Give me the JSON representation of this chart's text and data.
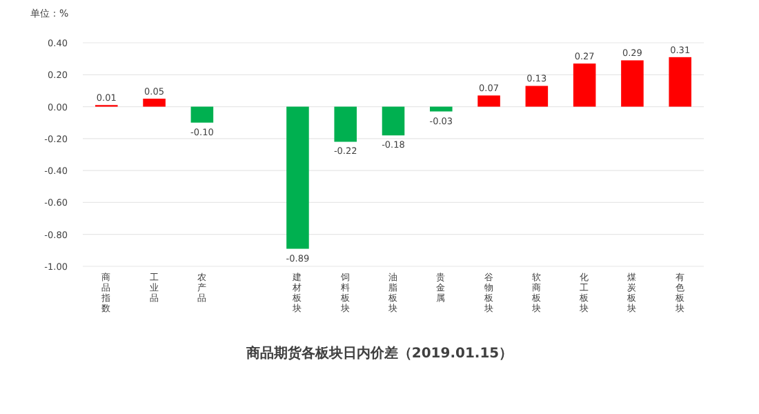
{
  "chart_data": {
    "type": "bar",
    "title": "商品期货各板块日内价差（2019.01.15）",
    "ylabel": "单位：%",
    "categories": [
      "商品指数",
      "工业品",
      "农产品",
      null,
      "建材板块",
      "饲料板块",
      "油脂板块",
      "贵金属",
      "谷物板块",
      "软商板块",
      "化工板块",
      "煤炭板块",
      "有色板块"
    ],
    "values": [
      0.01,
      0.05,
      -0.1,
      null,
      -0.89,
      -0.22,
      -0.18,
      -0.03,
      0.07,
      0.13,
      0.27,
      0.29,
      0.31
    ],
    "colors": [
      "#ff0000",
      "#ff0000",
      "#00b050",
      null,
      "#00b050",
      "#00b050",
      "#00b050",
      "#00b050",
      "#ff0000",
      "#ff0000",
      "#ff0000",
      "#ff0000",
      "#ff0000"
    ],
    "ylim": [
      -1.0,
      0.4
    ],
    "yticks": [
      {
        "value": -1,
        "label": "-1.00"
      },
      {
        "value": -0.8,
        "label": "-0.80"
      },
      {
        "value": -0.6,
        "label": "-0.60"
      },
      {
        "value": -0.4,
        "label": "-0.40"
      },
      {
        "value": -0.2,
        "label": "-0.20"
      },
      {
        "value": 0,
        "label": "0.00"
      },
      {
        "value": 0.2,
        "label": "0.20"
      },
      {
        "value": 0.4,
        "label": "0.40"
      }
    ],
    "value_labels": [
      "0.01",
      "0.05",
      "-0.10",
      null,
      "-0.89",
      "-0.22",
      "-0.18",
      "-0.03",
      "0.07",
      "0.13",
      "0.27",
      "0.29",
      "0.31"
    ],
    "grid": "y"
  }
}
